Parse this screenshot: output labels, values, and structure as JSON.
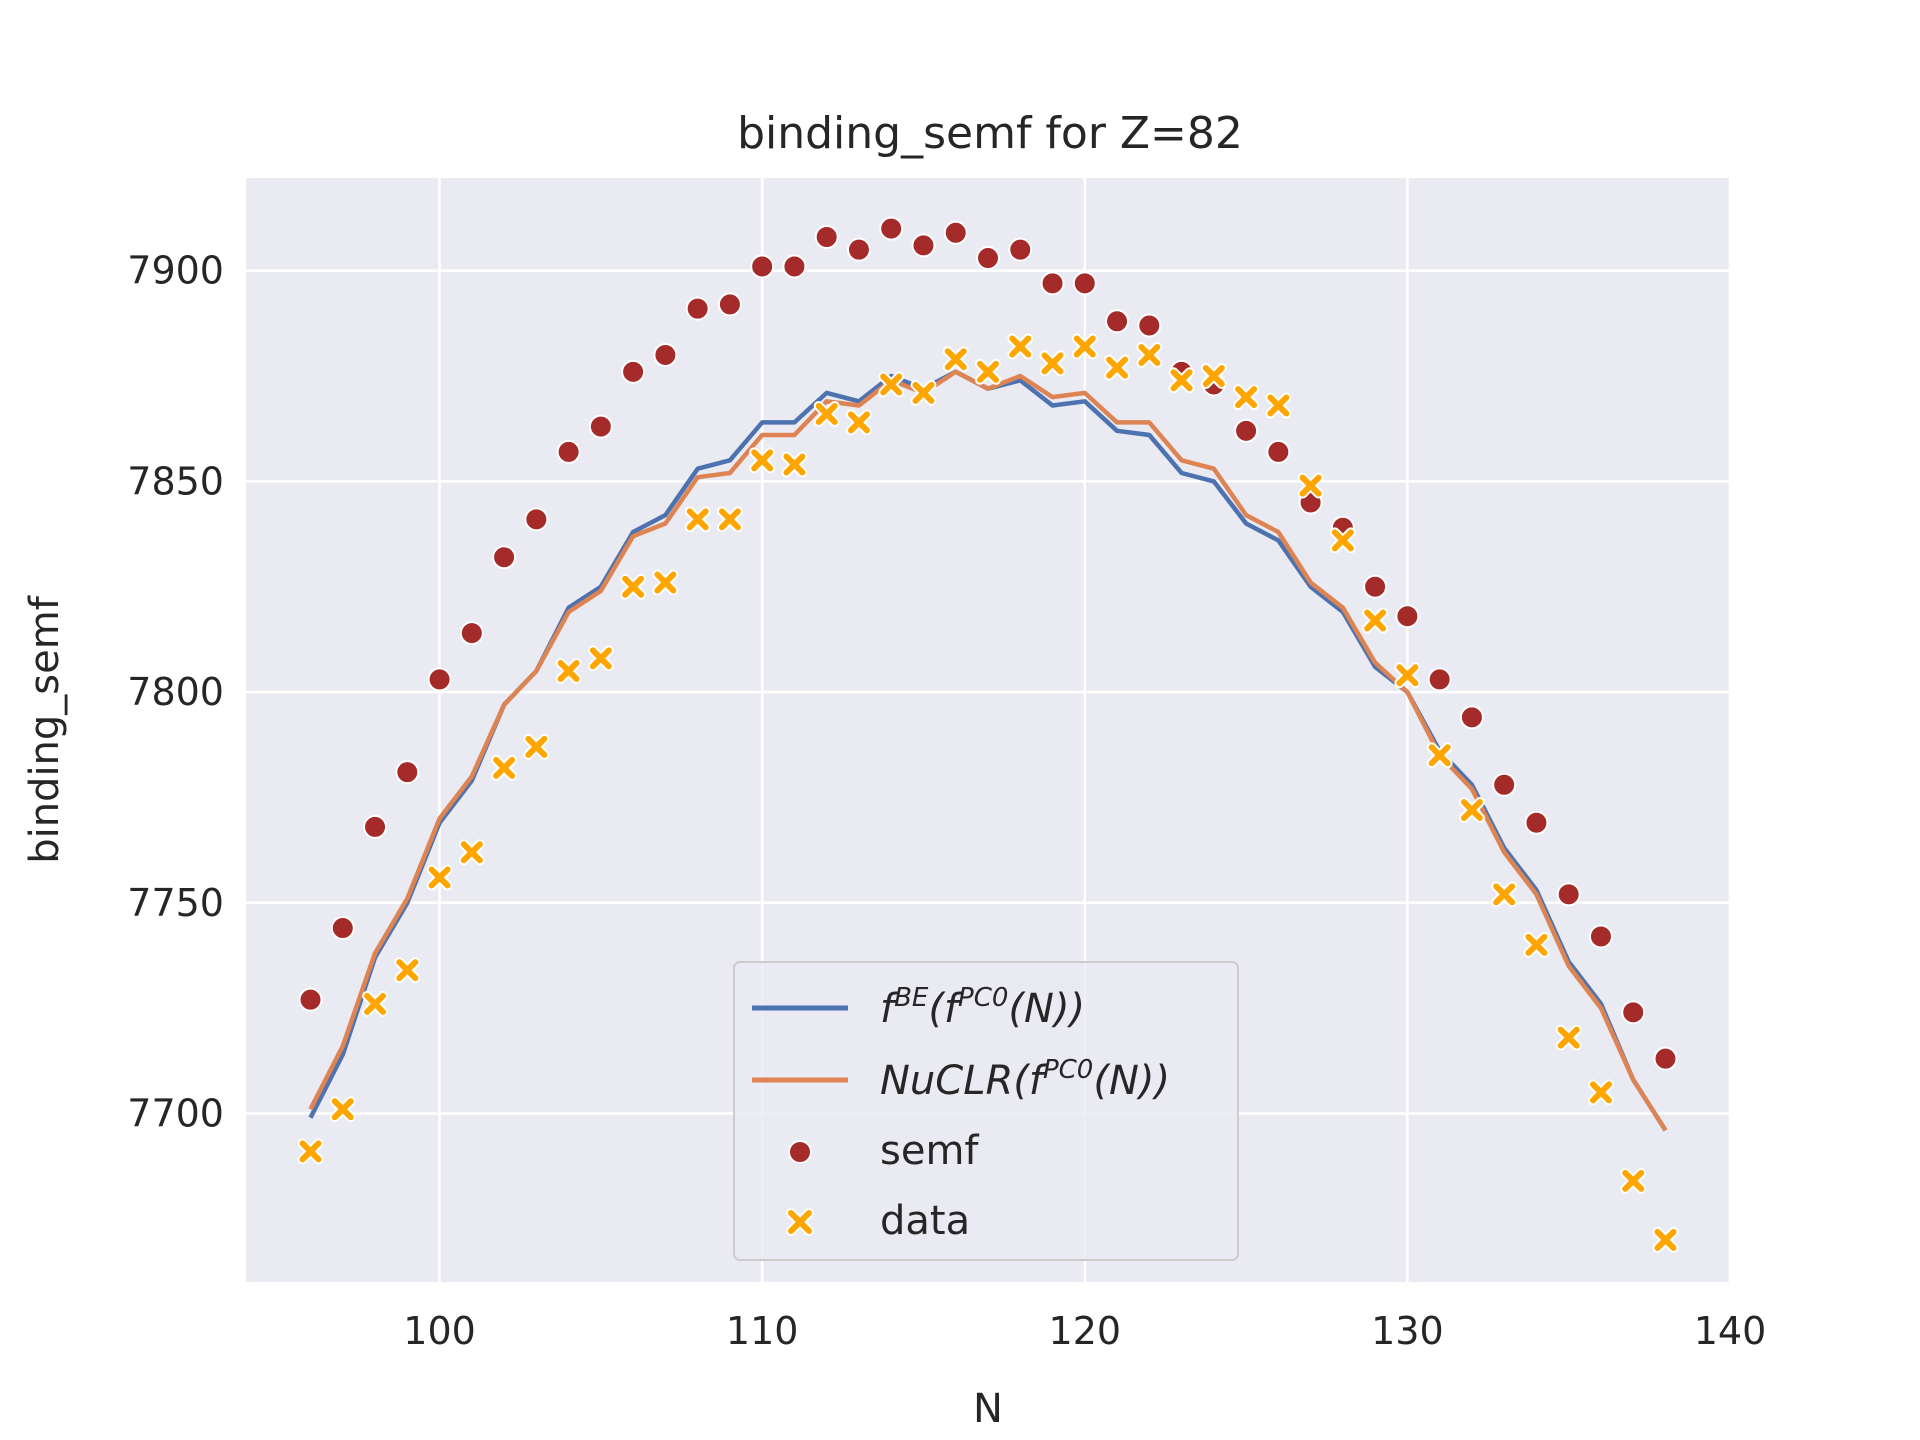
{
  "chart_data": {
    "type": "line",
    "title": "binding_semf for Z=82",
    "xlabel": "N",
    "ylabel": "binding_semf",
    "xlim": [
      94,
      140
    ],
    "ylim": [
      7660,
      7922
    ],
    "xticks": [
      100,
      110,
      120,
      130,
      140
    ],
    "yticks": [
      7700,
      7750,
      7800,
      7850,
      7900
    ],
    "grid": true,
    "legend_position": "lower-center",
    "x": [
      96,
      97,
      98,
      99,
      100,
      101,
      102,
      103,
      104,
      105,
      106,
      107,
      108,
      109,
      110,
      111,
      112,
      113,
      114,
      115,
      116,
      117,
      118,
      119,
      120,
      121,
      122,
      123,
      124,
      125,
      126,
      127,
      128,
      129,
      130,
      131,
      132,
      133,
      134,
      135,
      136,
      137,
      138
    ],
    "series": [
      {
        "name": "f^{BE}(f^{PC0}(N))",
        "kind": "line",
        "color": "#4c72b0",
        "values": [
          7699,
          7714,
          7737,
          7750,
          7769,
          7779,
          7797,
          7805,
          7820,
          7825,
          7838,
          7842,
          7853,
          7855,
          7864,
          7864,
          7871,
          7869,
          7875,
          7872,
          7876,
          7872,
          7874,
          7868,
          7869,
          7862,
          7861,
          7852,
          7850,
          7840,
          7836,
          7825,
          7819,
          7806,
          7800,
          7786,
          7778,
          7763,
          7753,
          7736,
          7726,
          7708,
          7696
        ]
      },
      {
        "name": "NuCLR(f^{PC0}(N))",
        "kind": "line",
        "color": "#dd8452",
        "values": [
          7701,
          7716,
          7738,
          7751,
          7770,
          7780,
          7797,
          7805,
          7819,
          7824,
          7837,
          7840,
          7851,
          7852,
          7861,
          7861,
          7869,
          7868,
          7874,
          7871,
          7876,
          7872,
          7875,
          7870,
          7871,
          7864,
          7864,
          7855,
          7853,
          7842,
          7838,
          7826,
          7820,
          7807,
          7800,
          7785,
          7777,
          7762,
          7752,
          7735,
          7725,
          7708,
          7696
        ]
      },
      {
        "name": "semf",
        "kind": "scatter",
        "marker": "circle",
        "color": "#a52a2a",
        "values": [
          7727,
          7744,
          7768,
          7781,
          7803,
          7814,
          7832,
          7841,
          7857,
          7863,
          7876,
          7880,
          7891,
          7892,
          7901,
          7901,
          7908,
          7905,
          7910,
          7906,
          7909,
          7903,
          7905,
          7897,
          7897,
          7888,
          7887,
          7876,
          7873,
          7862,
          7857,
          7845,
          7839,
          7825,
          7818,
          7803,
          7794,
          7778,
          7769,
          7752,
          7742,
          7724,
          7713
        ]
      },
      {
        "name": "data",
        "kind": "scatter",
        "marker": "x",
        "color": "#ffa500",
        "values": [
          7691,
          7701,
          7726,
          7734,
          7756,
          7762,
          7782,
          7787,
          7805,
          7808,
          7825,
          7826,
          7841,
          7841,
          7855,
          7854,
          7866,
          7864,
          7873,
          7871,
          7879,
          7876,
          7882,
          7878,
          7882,
          7877,
          7880,
          7874,
          7875,
          7870,
          7868,
          7849,
          7836,
          7817,
          7804,
          7785,
          7772,
          7752,
          7740,
          7718,
          7705,
          7684,
          7670
        ]
      }
    ],
    "legend": {
      "entries": [
        {
          "label_main": "f",
          "label_sup": "BE",
          "label_mid": "(f",
          "label_sup2": "PC0",
          "label_end": "(N))"
        },
        {
          "label_main": "NuCLR(f",
          "label_sup": "PC0",
          "label_mid": "(N))",
          "label_sup2": "",
          "label_end": ""
        },
        {
          "label_main": "semf"
        },
        {
          "label_main": "data"
        }
      ]
    },
    "colors": {
      "plot_bg": "#eaeaf2",
      "grid": "#ffffff",
      "text": "#262626"
    }
  }
}
